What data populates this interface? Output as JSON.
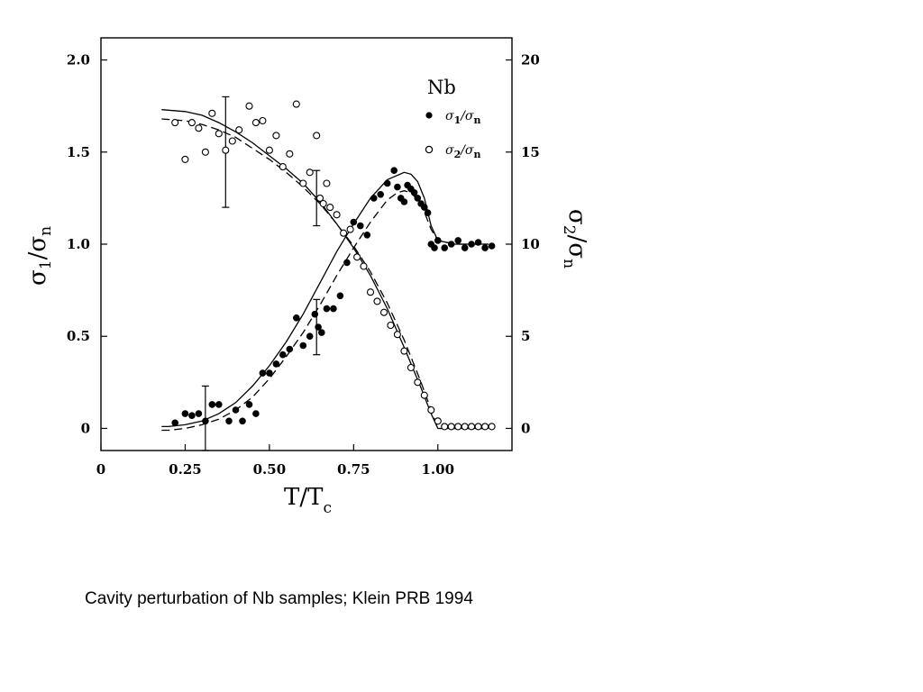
{
  "caption": "Cavity perturbation of Nb samples; Klein PRB 1994",
  "chart_data": {
    "type": "scatter",
    "title": "",
    "xlabel": "T/T",
    "xlabel_sub": "c",
    "ylabel": {
      "sym": "σ",
      "sub1": "1",
      "slash": "/",
      "sym2": "σ",
      "sub2": "n"
    },
    "y2label": {
      "sym": "σ",
      "sub1": "2",
      "slash": "/",
      "sym2": "σ",
      "sub2": "n"
    },
    "xlim": [
      0,
      1.22
    ],
    "ylim": [
      -0.12,
      2.12
    ],
    "y2lim": [
      -1.2,
      21.2
    ],
    "xticks": [
      {
        "v": 0,
        "label": "0"
      },
      {
        "v": 0.25,
        "label": "0.25"
      },
      {
        "v": 0.5,
        "label": "0.50"
      },
      {
        "v": 0.75,
        "label": "0.75"
      },
      {
        "v": 1.0,
        "label": "1.00"
      }
    ],
    "yticks": [
      {
        "v": 0,
        "label": "0"
      },
      {
        "v": 0.5,
        "label": "0.5"
      },
      {
        "v": 1.0,
        "label": "1.0"
      },
      {
        "v": 1.5,
        "label": "1.5"
      },
      {
        "v": 2.0,
        "label": "2.0"
      }
    ],
    "y2ticks": [
      {
        "v": 0,
        "label": "0"
      },
      {
        "v": 5,
        "label": "5"
      },
      {
        "v": 10,
        "label": "10"
      },
      {
        "v": 15,
        "label": "15"
      },
      {
        "v": 20,
        "label": "20"
      }
    ],
    "legend": {
      "title": "Nb",
      "position": "top-right"
    },
    "series": [
      {
        "name": "σ1/σn",
        "label_sym": "σ",
        "label_sub1": "1",
        "label_sym2": "/σ",
        "label_sub2": "n",
        "marker": "filled-circle",
        "axis": "left",
        "x": [
          0.22,
          0.25,
          0.27,
          0.29,
          0.31,
          0.33,
          0.35,
          0.38,
          0.4,
          0.42,
          0.44,
          0.46,
          0.48,
          0.5,
          0.52,
          0.54,
          0.56,
          0.58,
          0.6,
          0.62,
          0.635,
          0.645,
          0.655,
          0.67,
          0.69,
          0.71,
          0.73,
          0.75,
          0.77,
          0.79,
          0.81,
          0.83,
          0.85,
          0.87,
          0.88,
          0.89,
          0.9,
          0.91,
          0.92,
          0.93,
          0.94,
          0.95,
          0.96,
          0.97,
          0.98,
          0.99,
          1.0,
          1.02,
          1.04,
          1.06,
          1.08,
          1.1,
          1.12,
          1.14,
          1.16
        ],
        "y": [
          0.03,
          0.08,
          0.07,
          0.08,
          0.04,
          0.13,
          0.13,
          0.04,
          0.1,
          0.04,
          0.13,
          0.08,
          0.3,
          0.3,
          0.35,
          0.4,
          0.43,
          0.6,
          0.45,
          0.5,
          0.62,
          0.55,
          0.52,
          0.65,
          0.65,
          0.72,
          0.9,
          1.12,
          1.1,
          1.05,
          1.25,
          1.27,
          1.33,
          1.4,
          1.31,
          1.25,
          1.23,
          1.32,
          1.3,
          1.28,
          1.25,
          1.22,
          1.2,
          1.17,
          1.0,
          0.98,
          1.02,
          0.98,
          1.0,
          1.02,
          0.98,
          1.0,
          1.01,
          0.98,
          0.99
        ]
      },
      {
        "name": "σ2/σn",
        "label_sym": "σ",
        "label_sub1": "2",
        "label_sym2": "/σ",
        "label_sub2": "n",
        "marker": "open-circle",
        "axis": "right",
        "x": [
          0.22,
          0.25,
          0.27,
          0.29,
          0.31,
          0.33,
          0.35,
          0.37,
          0.39,
          0.41,
          0.44,
          0.46,
          0.48,
          0.5,
          0.52,
          0.54,
          0.56,
          0.58,
          0.6,
          0.62,
          0.64,
          0.65,
          0.66,
          0.67,
          0.68,
          0.7,
          0.72,
          0.74,
          0.76,
          0.78,
          0.8,
          0.82,
          0.84,
          0.86,
          0.88,
          0.9,
          0.92,
          0.94,
          0.96,
          0.98,
          1.0,
          1.02,
          1.04,
          1.06,
          1.08,
          1.1,
          1.12,
          1.14,
          1.16
        ],
        "y": [
          16.6,
          14.6,
          16.6,
          16.3,
          15.0,
          17.1,
          16.0,
          15.1,
          15.6,
          16.2,
          17.5,
          16.6,
          16.7,
          15.1,
          15.9,
          14.2,
          14.9,
          17.6,
          13.3,
          13.9,
          15.9,
          12.5,
          12.2,
          13.3,
          12.0,
          11.6,
          10.6,
          10.8,
          9.3,
          8.8,
          7.4,
          6.9,
          6.3,
          5.6,
          5.1,
          4.2,
          3.3,
          2.5,
          1.8,
          1.0,
          0.4,
          0.1,
          0.1,
          0.1,
          0.1,
          0.1,
          0.1,
          0.1,
          0.1
        ]
      }
    ],
    "curves": [
      {
        "kind": "solid",
        "x": [
          0.18,
          0.2,
          0.25,
          0.3,
          0.35,
          0.4,
          0.45,
          0.5,
          0.55,
          0.6,
          0.65,
          0.7,
          0.75,
          0.8,
          0.85,
          0.9,
          0.92,
          0.94,
          0.96,
          0.98,
          1.0,
          1.05,
          1.1,
          1.15
        ],
        "y": [
          0.01,
          0.01,
          0.02,
          0.04,
          0.08,
          0.14,
          0.23,
          0.34,
          0.47,
          0.62,
          0.79,
          0.96,
          1.11,
          1.25,
          1.35,
          1.39,
          1.38,
          1.34,
          1.25,
          1.1,
          1.02,
          1.0,
          1.0,
          1.0
        ]
      },
      {
        "kind": "dashed",
        "x": [
          0.18,
          0.2,
          0.25,
          0.3,
          0.35,
          0.4,
          0.45,
          0.5,
          0.55,
          0.6,
          0.65,
          0.7,
          0.75,
          0.8,
          0.85,
          0.88,
          0.9,
          0.92,
          0.95,
          0.98,
          1.0,
          1.05,
          1.1,
          1.15
        ],
        "y": [
          -0.01,
          -0.01,
          0.0,
          0.02,
          0.05,
          0.1,
          0.17,
          0.27,
          0.39,
          0.52,
          0.67,
          0.83,
          0.98,
          1.12,
          1.24,
          1.28,
          1.29,
          1.28,
          1.22,
          1.08,
          1.02,
          1.0,
          1.0,
          1.0
        ]
      },
      {
        "kind": "solid",
        "x": [
          0.18,
          0.25,
          0.3,
          0.35,
          0.4,
          0.45,
          0.5,
          0.55,
          0.6,
          0.65,
          0.7,
          0.75,
          0.8,
          0.85,
          0.9,
          0.95,
          0.98,
          1.0,
          1.05,
          1.1,
          1.15
        ],
        "y": [
          17.3,
          17.2,
          17.0,
          16.6,
          16.1,
          15.5,
          14.8,
          14.1,
          13.3,
          12.3,
          11.1,
          9.8,
          8.3,
          6.5,
          4.4,
          2.2,
          0.8,
          0.0,
          0.0,
          0.0,
          0.0
        ]
      },
      {
        "kind": "dashed",
        "x": [
          0.18,
          0.25,
          0.3,
          0.35,
          0.4,
          0.45,
          0.5,
          0.55,
          0.6,
          0.65,
          0.7,
          0.75,
          0.8,
          0.85,
          0.9,
          0.95,
          0.98,
          1.0,
          1.05,
          1.1,
          1.15
        ],
        "y": [
          16.8,
          16.7,
          16.5,
          16.2,
          15.8,
          15.2,
          14.6,
          13.9,
          13.1,
          12.2,
          11.1,
          9.9,
          8.5,
          6.8,
          4.8,
          2.5,
          1.0,
          0.0,
          0.0,
          0.0,
          0.0
        ]
      }
    ],
    "error_bars": [
      {
        "axis": "right",
        "x": 0.37,
        "y": 15.0,
        "lo": 12.0,
        "hi": 18.0
      },
      {
        "axis": "right",
        "x": 0.64,
        "y": 12.5,
        "lo": 11.0,
        "hi": 14.0
      },
      {
        "axis": "left",
        "x": 0.31,
        "y": 0.04,
        "lo": -0.12,
        "hi": 0.23
      },
      {
        "axis": "left",
        "x": 0.64,
        "y": 0.55,
        "lo": 0.4,
        "hi": 0.7
      }
    ],
    "grid": false
  }
}
